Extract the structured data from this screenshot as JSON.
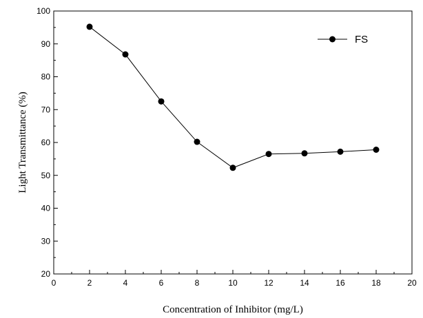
{
  "chart_data": {
    "type": "line",
    "title": "",
    "xlabel": "Concentration of Inhibitor (mg/L)",
    "ylabel": "Light Transmittance (%)",
    "xlim": [
      0,
      20
    ],
    "ylim": [
      20,
      100
    ],
    "x_ticks": [
      0,
      2,
      4,
      6,
      8,
      10,
      12,
      14,
      16,
      18,
      20
    ],
    "y_ticks": [
      20,
      30,
      40,
      50,
      60,
      70,
      80,
      90,
      100
    ],
    "x_minor_step": 1,
    "y_minor_step": 5,
    "grid": false,
    "legend_position": "top-right",
    "series": [
      {
        "name": "FS",
        "color": "#000000",
        "marker": "filled-circle",
        "x": [
          2,
          4,
          6,
          8,
          10,
          12,
          14,
          16,
          18
        ],
        "y": [
          95.2,
          86.8,
          72.5,
          60.2,
          52.3,
          56.5,
          56.7,
          57.2,
          57.8
        ]
      }
    ]
  }
}
